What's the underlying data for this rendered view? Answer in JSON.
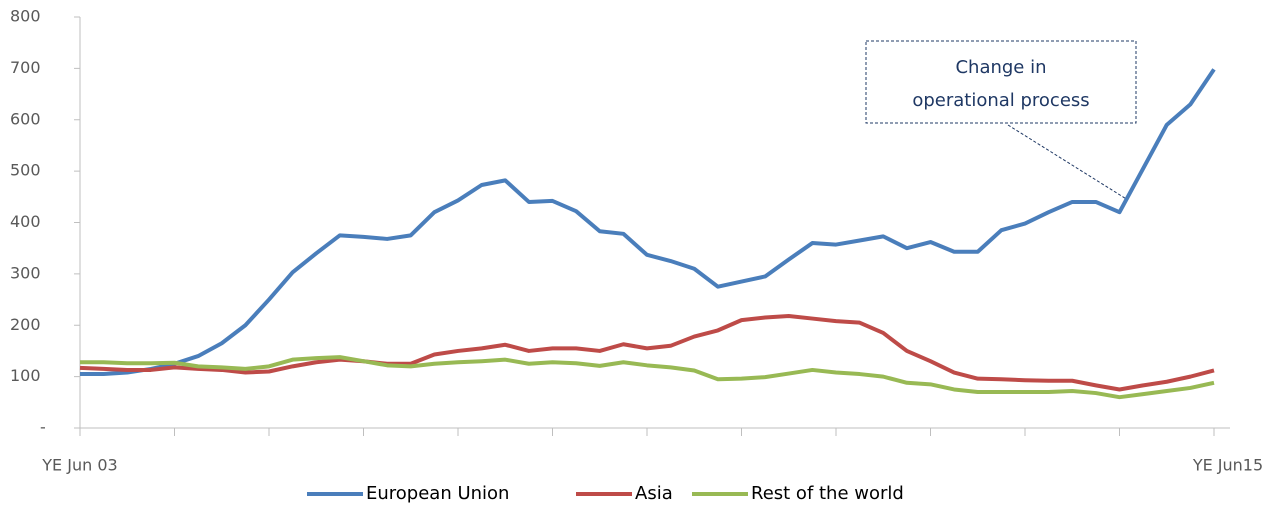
{
  "chart_data": {
    "type": "line",
    "categories": [
      "YE Jun 03",
      null,
      null,
      null,
      null,
      null,
      null,
      null,
      null,
      null,
      null,
      null,
      null,
      null,
      null,
      null,
      null,
      null,
      null,
      null,
      null,
      null,
      null,
      null,
      null,
      null,
      null,
      null,
      null,
      null,
      null,
      null,
      null,
      null,
      null,
      null,
      null,
      null,
      null,
      null,
      null,
      null,
      null,
      null,
      null,
      null,
      null,
      null,
      "YE Jun15"
    ],
    "series": [
      {
        "name": "European Union",
        "color": "#4a7ebb",
        "values": [
          105,
          105,
          108,
          115,
          125,
          140,
          165,
          200,
          250,
          303,
          340,
          375,
          372,
          368,
          375,
          420,
          443,
          473,
          482,
          440,
          442,
          422,
          383,
          378,
          337,
          325,
          310,
          275,
          285,
          295,
          328,
          360,
          357,
          365,
          373,
          350,
          362,
          343,
          343,
          385,
          398,
          420,
          440,
          440,
          420,
          505,
          590,
          630,
          698
        ]
      },
      {
        "name": "Asia",
        "color": "#be4b48",
        "values": [
          117,
          115,
          113,
          113,
          118,
          115,
          113,
          108,
          110,
          120,
          128,
          133,
          130,
          125,
          125,
          143,
          150,
          155,
          162,
          150,
          155,
          155,
          150,
          163,
          155,
          160,
          178,
          190,
          210,
          215,
          218,
          213,
          208,
          205,
          185,
          150,
          130,
          108,
          96,
          95,
          93,
          92,
          92,
          83,
          75,
          83,
          90,
          100,
          112
        ]
      },
      {
        "name": "Rest of the world",
        "color": "#98b954",
        "values": [
          128,
          128,
          126,
          126,
          127,
          120,
          118,
          115,
          120,
          133,
          136,
          138,
          130,
          122,
          120,
          125,
          128,
          130,
          133,
          125,
          128,
          126,
          121,
          128,
          122,
          118,
          112,
          95,
          96,
          99,
          106,
          113,
          108,
          105,
          100,
          88,
          85,
          75,
          70,
          70,
          70,
          70,
          72,
          68,
          60,
          66,
          72,
          78,
          88
        ]
      }
    ],
    "ylim": [
      0,
      800
    ],
    "yticks": [
      {
        "value": 0,
        "label": "-"
      },
      100,
      200,
      300,
      400,
      500,
      600,
      700,
      800
    ],
    "annotation": {
      "lines": [
        "Change in",
        "operational process"
      ]
    },
    "legend": "bottom"
  }
}
